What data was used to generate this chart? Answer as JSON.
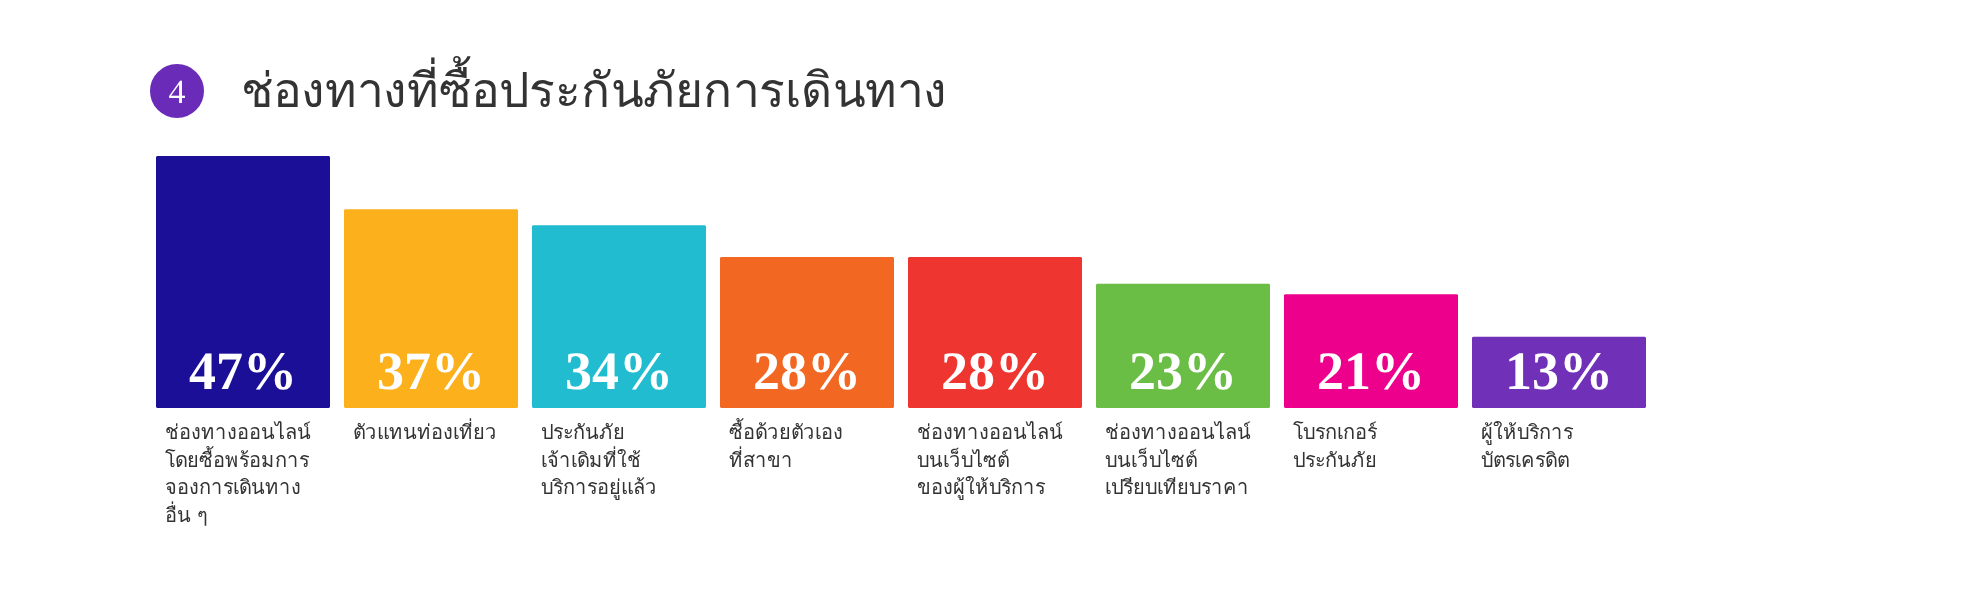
{
  "chart_data": {
    "type": "bar",
    "title": "ช่องทางที่ซื้อประกันภัยการเดินทาง",
    "annotations": [
      "4"
    ],
    "categories": [
      "ช่องทางออนไลน์\nโดยซื้อพร้อมการ\nจองการเดินทาง\nอื่น ๆ",
      "ตัวแทนท่องเที่ยว",
      "ประกันภัย\nเจ้าเดิมที่ใช้\nบริการอยู่แล้ว",
      "ซื้อด้วยตัวเอง\nที่สาขา",
      "ช่องทางออนไลน์\nบนเว็บไซต์\nของผู้ให้บริการ",
      "ช่องทางออนไลน์\nบนเว็บไซต์\nเปรียบเทียบราคา",
      "โบรกเกอร์\nประกันภัย",
      "ผู้ให้บริการ\nบัตรเครดิต"
    ],
    "values": [
      47,
      37,
      34,
      28,
      28,
      23,
      21,
      13
    ],
    "colors": [
      "#1a0f96",
      "#fbb01c",
      "#22bcd0",
      "#f26722",
      "#ee3530",
      "#6abd45",
      "#ec008c",
      "#7030b8"
    ],
    "value_labels": [
      "47%",
      "37%",
      "34%",
      "28%",
      "28%",
      "23%",
      "21%",
      "13%"
    ]
  }
}
